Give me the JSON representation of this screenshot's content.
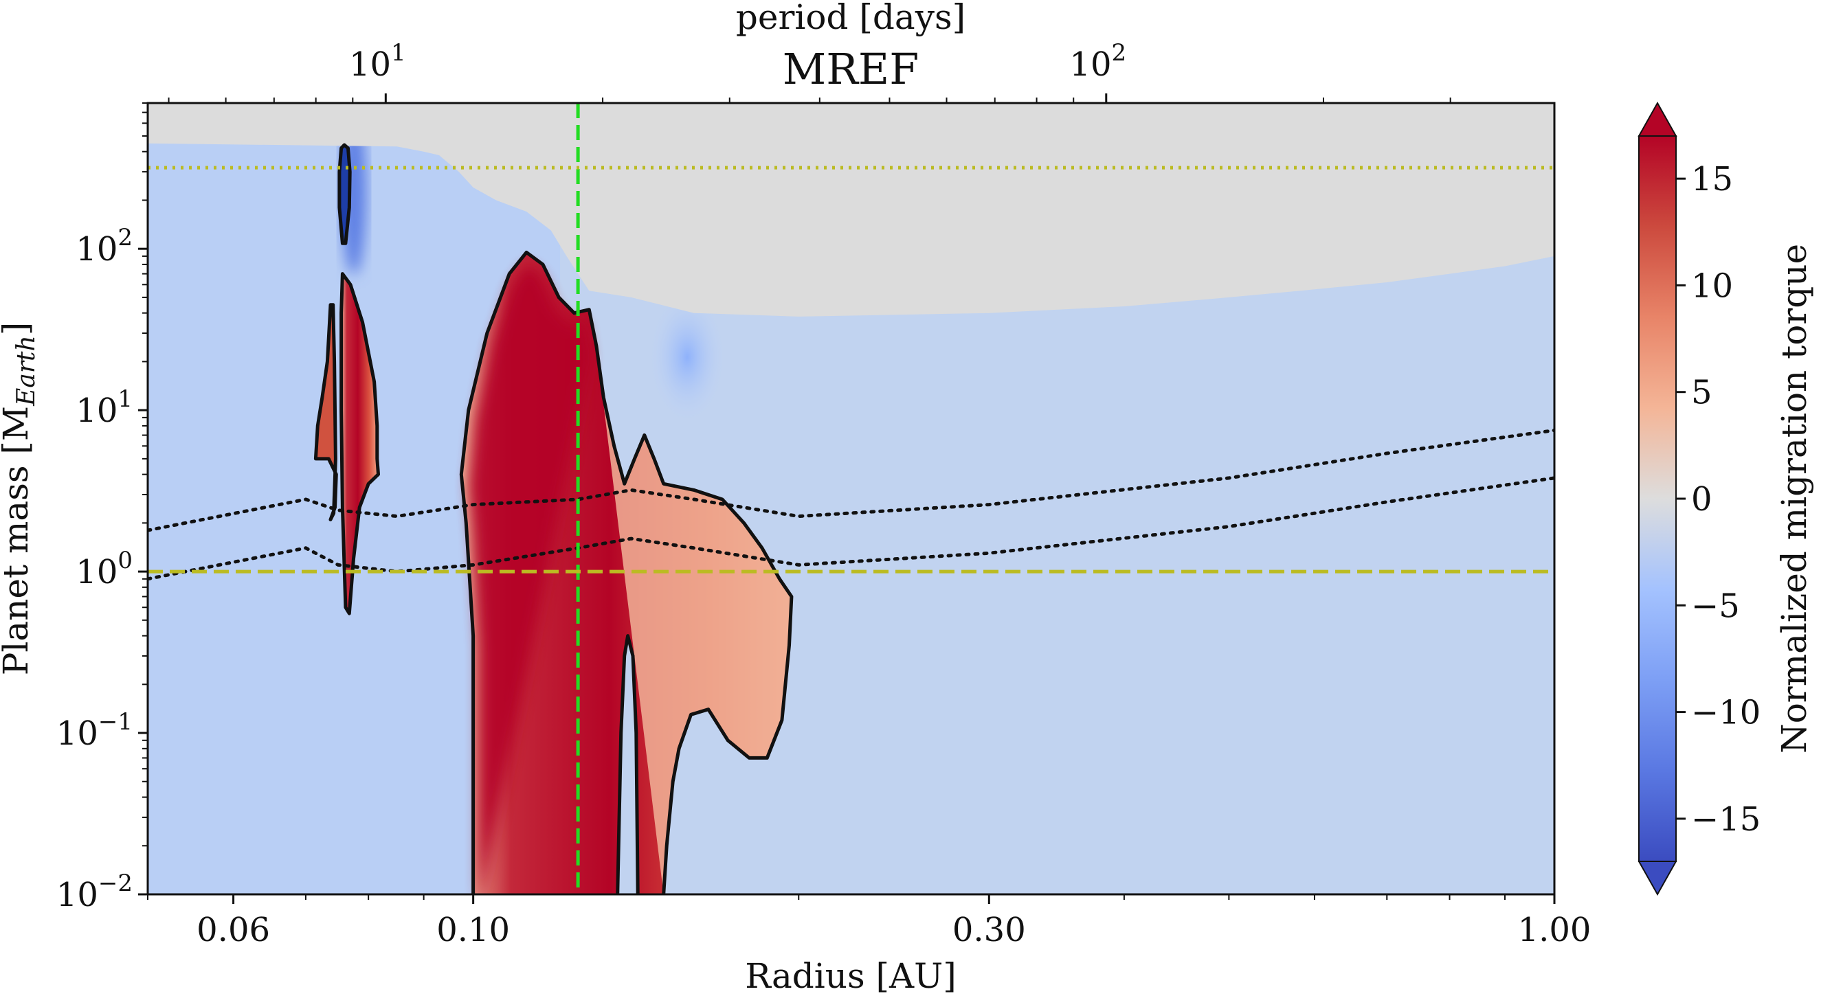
{
  "chart_data": {
    "type": "heatmap",
    "title": "MREF",
    "xlabel": "Radius [AU]",
    "ylabel_main": "Planet mass [M",
    "ylabel_sub": "Earth",
    "ylabel_end": "]",
    "top_xlabel": "period [days]",
    "colorbar_label": "Normalized migration torque",
    "x_scale": "log",
    "y_scale": "log",
    "xlim": [
      0.05,
      1.0
    ],
    "ylim": [
      0.01,
      800
    ],
    "x_ticks": [
      {
        "value": 0.06,
        "label": "0.06"
      },
      {
        "value": 0.1,
        "label": "0.10"
      },
      {
        "value": 0.3,
        "label": "0.30"
      },
      {
        "value": 1.0,
        "label": "1.00"
      }
    ],
    "y_ticks": [
      {
        "value": 0.01,
        "base": "10",
        "exp": "−2"
      },
      {
        "value": 0.1,
        "base": "10",
        "exp": "−1"
      },
      {
        "value": 1,
        "base": "10",
        "exp": "0"
      },
      {
        "value": 10,
        "base": "10",
        "exp": "1"
      },
      {
        "value": 100,
        "base": "10",
        "exp": "2"
      }
    ],
    "top_ticks": [
      {
        "value_days": 10,
        "radius_au": 0.083,
        "base": "10",
        "exp": "1"
      },
      {
        "value_days": 100,
        "radius_au": 0.385,
        "base": "10",
        "exp": "2"
      }
    ],
    "colorbar": {
      "range": [
        -17,
        17
      ],
      "ticks": [
        {
          "value": 15,
          "label": "15"
        },
        {
          "value": 10,
          "label": "10"
        },
        {
          "value": 5,
          "label": "5"
        },
        {
          "value": 0,
          "label": "0"
        },
        {
          "value": -5,
          "label": "−5"
        },
        {
          "value": -10,
          "label": "−10"
        },
        {
          "value": -15,
          "label": "−15"
        }
      ],
      "colormap": "coolwarm",
      "extend": "both"
    },
    "reference_lines": [
      {
        "orientation": "vertical",
        "value": 0.125,
        "color": "#22dd22",
        "style": "dashed"
      },
      {
        "orientation": "horizontal",
        "value": 1.0,
        "color": "#bbbb22",
        "style": "dashed"
      },
      {
        "orientation": "horizontal",
        "value": 318,
        "color": "#bbbb22",
        "style": "dotted"
      }
    ],
    "gap_opening_boundary": [
      [
        0.05,
        450
      ],
      [
        0.085,
        430
      ],
      [
        0.09,
        400
      ],
      [
        0.093,
        380
      ],
      [
        0.097,
        300
      ],
      [
        0.1,
        240
      ],
      [
        0.105,
        200
      ],
      [
        0.112,
        170
      ],
      [
        0.118,
        130
      ],
      [
        0.122,
        90
      ],
      [
        0.128,
        55
      ],
      [
        0.14,
        50
      ],
      [
        0.16,
        40
      ],
      [
        0.2,
        38
      ],
      [
        0.3,
        40
      ],
      [
        0.4,
        44
      ],
      [
        0.5,
        50
      ],
      [
        0.6,
        56
      ],
      [
        0.7,
        62
      ],
      [
        0.8,
        70
      ],
      [
        0.9,
        78
      ],
      [
        1.0,
        90
      ]
    ],
    "isomass_lines": [
      {
        "name": "upper",
        "points": [
          [
            0.05,
            1.8
          ],
          [
            0.07,
            2.8
          ],
          [
            0.075,
            2.4
          ],
          [
            0.085,
            2.2
          ],
          [
            0.1,
            2.6
          ],
          [
            0.125,
            2.8
          ],
          [
            0.14,
            3.2
          ],
          [
            0.16,
            2.8
          ],
          [
            0.2,
            2.2
          ],
          [
            0.3,
            2.6
          ],
          [
            0.5,
            3.8
          ],
          [
            0.7,
            5.4
          ],
          [
            1.0,
            7.5
          ]
        ]
      },
      {
        "name": "lower",
        "points": [
          [
            0.05,
            0.9
          ],
          [
            0.07,
            1.4
          ],
          [
            0.075,
            1.1
          ],
          [
            0.085,
            1.0
          ],
          [
            0.1,
            1.1
          ],
          [
            0.125,
            1.4
          ],
          [
            0.14,
            1.6
          ],
          [
            0.16,
            1.4
          ],
          [
            0.2,
            1.1
          ],
          [
            0.3,
            1.3
          ],
          [
            0.5,
            1.9
          ],
          [
            0.7,
            2.7
          ],
          [
            1.0,
            3.8
          ]
        ]
      }
    ],
    "zero_torque_contours": [
      {
        "name": "thin-spike",
        "points": [
          [
            0.0757,
            108
          ],
          [
            0.0752,
            180
          ],
          [
            0.0752,
            300
          ],
          [
            0.0755,
            420
          ],
          [
            0.076,
            440
          ],
          [
            0.0766,
            420
          ],
          [
            0.0769,
            300
          ],
          [
            0.0768,
            180
          ],
          [
            0.0762,
            108
          ],
          [
            0.0757,
            108
          ]
        ]
      },
      {
        "name": "inner-lobe-left",
        "points": [
          [
            0.0738,
            2.1
          ],
          [
            0.0745,
            2.5
          ],
          [
            0.0747,
            4
          ],
          [
            0.0735,
            5
          ],
          [
            0.0715,
            5
          ],
          [
            0.0718,
            8
          ],
          [
            0.0725,
            12
          ],
          [
            0.0733,
            20
          ],
          [
            0.0738,
            45
          ],
          [
            0.0742,
            45
          ],
          [
            0.0744,
            20
          ],
          [
            0.0745,
            10
          ],
          [
            0.0746,
            5
          ],
          [
            0.0743,
            2.3
          ],
          [
            0.0738,
            2.1
          ]
        ]
      },
      {
        "name": "inner-lobe-right",
        "points": [
          [
            0.0757,
            70
          ],
          [
            0.077,
            60
          ],
          [
            0.079,
            35
          ],
          [
            0.081,
            15
          ],
          [
            0.0815,
            8
          ],
          [
            0.0815,
            5
          ],
          [
            0.0817,
            4
          ],
          [
            0.08,
            3.5
          ],
          [
            0.0785,
            2.5
          ],
          [
            0.0775,
            1.2
          ],
          [
            0.0768,
            0.55
          ],
          [
            0.0762,
            0.6
          ],
          [
            0.0757,
            2.5
          ],
          [
            0.0755,
            10
          ],
          [
            0.0755,
            40
          ],
          [
            0.0757,
            70
          ]
        ]
      },
      {
        "name": "main-positive-region",
        "points": [
          [
            0.1,
            0.01
          ],
          [
            0.1,
            0.4
          ],
          [
            0.0985,
            2
          ],
          [
            0.0975,
            4
          ],
          [
            0.099,
            10
          ],
          [
            0.103,
            30
          ],
          [
            0.108,
            70
          ],
          [
            0.112,
            95
          ],
          [
            0.116,
            80
          ],
          [
            0.12,
            50
          ],
          [
            0.124,
            40
          ],
          [
            0.128,
            42
          ],
          [
            0.13,
            25
          ],
          [
            0.132,
            12
          ],
          [
            0.135,
            6
          ],
          [
            0.138,
            3.5
          ],
          [
            0.141,
            5
          ],
          [
            0.144,
            7
          ],
          [
            0.147,
            5
          ],
          [
            0.15,
            3.5
          ],
          [
            0.16,
            3.2
          ],
          [
            0.17,
            2.8
          ],
          [
            0.178,
            2
          ],
          [
            0.185,
            1.4
          ],
          [
            0.192,
            0.9
          ],
          [
            0.197,
            0.7
          ],
          [
            0.196,
            0.35
          ],
          [
            0.193,
            0.12
          ],
          [
            0.187,
            0.07
          ],
          [
            0.18,
            0.07
          ],
          [
            0.172,
            0.09
          ],
          [
            0.165,
            0.14
          ],
          [
            0.159,
            0.13
          ],
          [
            0.155,
            0.08
          ],
          [
            0.153,
            0.05
          ],
          [
            0.151,
            0.02
          ],
          [
            0.15,
            0.01
          ]
        ]
      },
      {
        "name": "narrow-gap-tongue",
        "points": [
          [
            0.136,
            0.01
          ],
          [
            0.137,
            0.1
          ],
          [
            0.138,
            0.3
          ],
          [
            0.139,
            0.4
          ],
          [
            0.1405,
            0.3
          ],
          [
            0.1415,
            0.1
          ],
          [
            0.142,
            0.01
          ]
        ]
      }
    ]
  }
}
